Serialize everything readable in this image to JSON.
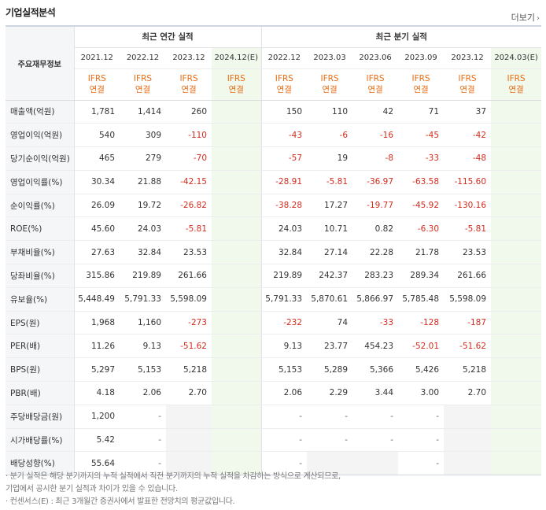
{
  "header": {
    "title": "기업실적분석",
    "more_label": "더보기"
  },
  "table": {
    "row_header": "주요재무정보",
    "annual_group": "최근 연간 실적",
    "quarter_group": "최근 분기 실적",
    "periods": [
      "2021.12",
      "2022.12",
      "2023.12",
      "2024.12(E)",
      "2022.12",
      "2023.03",
      "2023.06",
      "2023.09",
      "2023.12",
      "2024.03(E)"
    ],
    "ifrs_top": "IFRS",
    "ifrs_bottom": "연결",
    "rows": [
      {
        "label": "매출액(억원)",
        "values": [
          "1,781",
          "1,414",
          "260",
          "",
          "150",
          "110",
          "42",
          "71",
          "37",
          ""
        ]
      },
      {
        "label": "영업이익(억원)",
        "values": [
          "540",
          "309",
          "-110",
          "",
          "-43",
          "-6",
          "-16",
          "-45",
          "-42",
          ""
        ]
      },
      {
        "label": "당기순이익(억원)",
        "values": [
          "465",
          "279",
          "-70",
          "",
          "-57",
          "19",
          "-8",
          "-33",
          "-48",
          ""
        ]
      },
      {
        "label": "영업이익률(%)",
        "values": [
          "30.34",
          "21.88",
          "-42.15",
          "",
          "-28.91",
          "-5.81",
          "-36.97",
          "-63.58",
          "-115.60",
          ""
        ]
      },
      {
        "label": "순이익률(%)",
        "values": [
          "26.09",
          "19.72",
          "-26.82",
          "",
          "-38.28",
          "17.27",
          "-19.77",
          "-45.92",
          "-130.16",
          ""
        ]
      },
      {
        "label": "ROE(%)",
        "values": [
          "45.60",
          "24.03",
          "-5.81",
          "",
          "24.03",
          "10.71",
          "0.82",
          "-6.30",
          "-5.81",
          ""
        ]
      },
      {
        "label": "부채비율(%)",
        "values": [
          "27.63",
          "32.84",
          "23.53",
          "",
          "32.84",
          "27.14",
          "22.28",
          "21.78",
          "23.53",
          ""
        ]
      },
      {
        "label": "당좌비율(%)",
        "values": [
          "315.86",
          "219.89",
          "261.66",
          "",
          "219.89",
          "242.37",
          "283.23",
          "289.34",
          "261.66",
          ""
        ]
      },
      {
        "label": "유보율(%)",
        "values": [
          "5,448.49",
          "5,791.33",
          "5,598.09",
          "",
          "5,791.33",
          "5,870.61",
          "5,866.97",
          "5,785.48",
          "5,598.09",
          ""
        ]
      },
      {
        "label": "EPS(원)",
        "values": [
          "1,968",
          "1,160",
          "-273",
          "",
          "-232",
          "74",
          "-33",
          "-128",
          "-187",
          ""
        ]
      },
      {
        "label": "PER(배)",
        "values": [
          "11.26",
          "9.13",
          "-51.62",
          "",
          "9.13",
          "23.77",
          "454.23",
          "-52.01",
          "-51.62",
          ""
        ]
      },
      {
        "label": "BPS(원)",
        "values": [
          "5,297",
          "5,153",
          "5,218",
          "",
          "5,153",
          "5,289",
          "5,366",
          "5,426",
          "5,218",
          ""
        ]
      },
      {
        "label": "PBR(배)",
        "values": [
          "4.18",
          "2.06",
          "2.70",
          "",
          "2.06",
          "2.29",
          "3.44",
          "3.00",
          "2.70",
          ""
        ]
      },
      {
        "label": "주당배당금(원)",
        "values": [
          "1,200",
          "-",
          "",
          "",
          "-",
          "-",
          "-",
          "-",
          "",
          ""
        ]
      },
      {
        "label": "시가배당률(%)",
        "values": [
          "5.42",
          "-",
          "",
          "",
          "-",
          "-",
          "-",
          "-",
          "",
          ""
        ]
      },
      {
        "label": "배당성향(%)",
        "values": [
          "55.64",
          "-",
          "",
          "",
          "-",
          "",
          "",
          "-",
          "",
          ""
        ]
      }
    ]
  },
  "notes": [
    "· 분기 실적은 해당 분기까지의 누적 실적에서 직전 분기까지의 누적 실적을 차감하는 방식으로 계산되므로,",
    "  기업에서 공시한 분기 실적과 차이가 있을 수 있습니다.",
    "· 컨센서스(E) : 최근 3개월간 증권사에서 발표한 전망치의 평균값입니다."
  ],
  "colors": {
    "negative": "#d52b1e",
    "ifrs": "#e86c13",
    "estimate_bg": "#f1f9ed",
    "label_bg": "#f4f6f8"
  }
}
